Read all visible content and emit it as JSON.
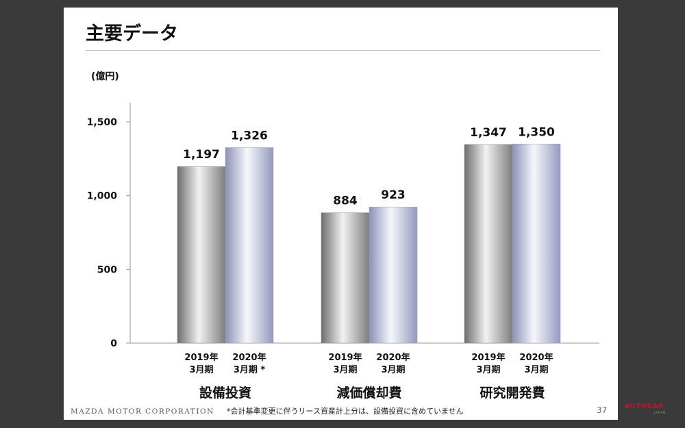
{
  "slide": {
    "title": "主要データ",
    "unit": "(億円)",
    "footer_brand": "MAZDA MOTOR CORPORATION",
    "footnote": "*会計基準変更に伴うリース資産計上分は、設備投資に含めていません",
    "page_number": "37"
  },
  "watermark": {
    "text": "AUTOCAR",
    "sub": "JAPAN"
  },
  "colors": {
    "bar_2019": "#9a9a9a",
    "bar_2020": "#b9bdd8",
    "axis": "#999999"
  },
  "chart_data": {
    "type": "bar",
    "title": "主要データ",
    "ylabel": "(億円)",
    "ylim": [
      0,
      1700
    ],
    "yticks": [
      0,
      500,
      1000,
      1500
    ],
    "ytick_labels": [
      "0",
      "500",
      "1,000",
      "1,500"
    ],
    "grid": false,
    "groups": [
      {
        "name": "設備投資",
        "bars": [
          {
            "period": "2019年\n3月期",
            "value": 1197,
            "label": "1,197"
          },
          {
            "period": "2020年\n3月期 *",
            "value": 1326,
            "label": "1,326"
          }
        ]
      },
      {
        "name": "減価償却費",
        "bars": [
          {
            "period": "2019年\n3月期",
            "value": 884,
            "label": "884"
          },
          {
            "period": "2020年\n3月期",
            "value": 923,
            "label": "923"
          }
        ]
      },
      {
        "name": "研究開発費",
        "bars": [
          {
            "period": "2019年\n3月期",
            "value": 1347,
            "label": "1,347"
          },
          {
            "period": "2020年\n3月期",
            "value": 1350,
            "label": "1,350"
          }
        ]
      }
    ]
  }
}
